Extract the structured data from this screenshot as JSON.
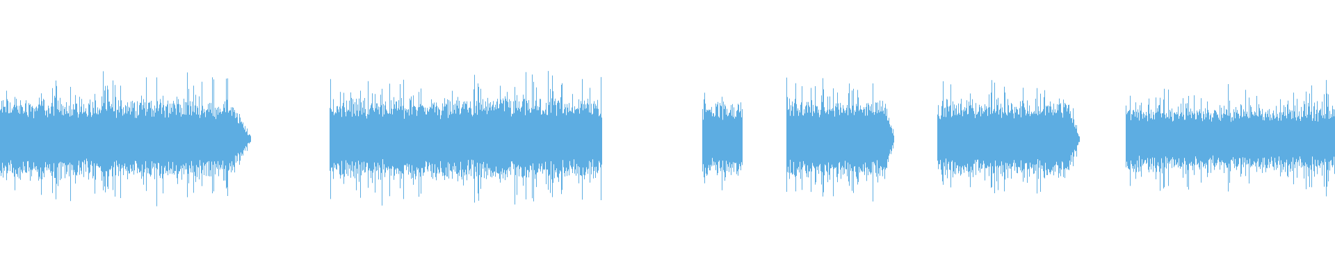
{
  "chart_data": {
    "type": "area",
    "title": "",
    "xlabel": "",
    "ylabel": "",
    "grid": false,
    "legend": "none",
    "color": "#5dade2",
    "background": "#ffffff",
    "x_range": [
      0,
      1
    ],
    "y_range": [
      -1,
      1
    ],
    "segments": [
      {
        "start": 0.0,
        "end": 0.188,
        "body_amp": 0.22,
        "peak_amp": 0.44,
        "fade_out": true
      },
      {
        "start": 0.247,
        "end": 0.451,
        "body_amp": 0.22,
        "peak_amp": 0.45,
        "fade_out": false
      },
      {
        "start": 0.526,
        "end": 0.556,
        "body_amp": 0.2,
        "peak_amp": 0.34,
        "fade_out": false
      },
      {
        "start": 0.589,
        "end": 0.67,
        "body_amp": 0.22,
        "peak_amp": 0.44,
        "fade_out": true
      },
      {
        "start": 0.702,
        "end": 0.809,
        "body_amp": 0.21,
        "peak_amp": 0.4,
        "fade_out": true
      },
      {
        "start": 0.843,
        "end": 1.0,
        "body_amp": 0.18,
        "peak_amp": 0.38,
        "fade_out": false
      }
    ]
  }
}
